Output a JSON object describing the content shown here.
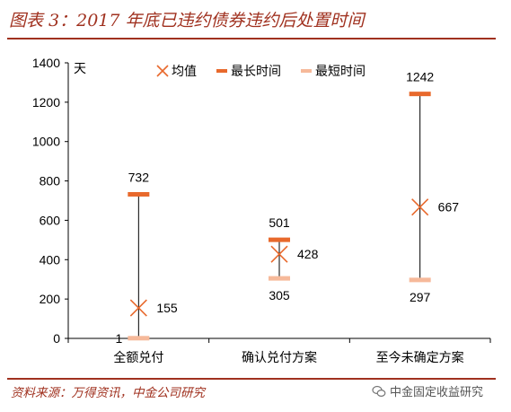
{
  "figure": {
    "title": "图表 3：2017 年底已违约债券违约后处置时间",
    "source": "资料来源：万得资讯，中金公司研究",
    "watermark": "中金固定收益研究"
  },
  "chart_data": {
    "type": "scatter",
    "ylabel": "天",
    "ylim": [
      0,
      1400
    ],
    "yticks": [
      0,
      200,
      400,
      600,
      800,
      1000,
      1200,
      1400
    ],
    "categories": [
      "全额兑付",
      "确认兑付方案",
      "至今未确定方案"
    ],
    "series": [
      {
        "name": "均值",
        "marker": "x",
        "color": "#e8692c",
        "values": [
          155,
          428,
          667
        ]
      },
      {
        "name": "最长时间",
        "marker": "dash",
        "color": "#e8692c",
        "values": [
          732,
          501,
          1242
        ]
      },
      {
        "name": "最短时间",
        "marker": "dash",
        "color": "#f6b99a",
        "values": [
          1,
          305,
          297
        ]
      }
    ],
    "legend_position": "top",
    "grid": false
  }
}
